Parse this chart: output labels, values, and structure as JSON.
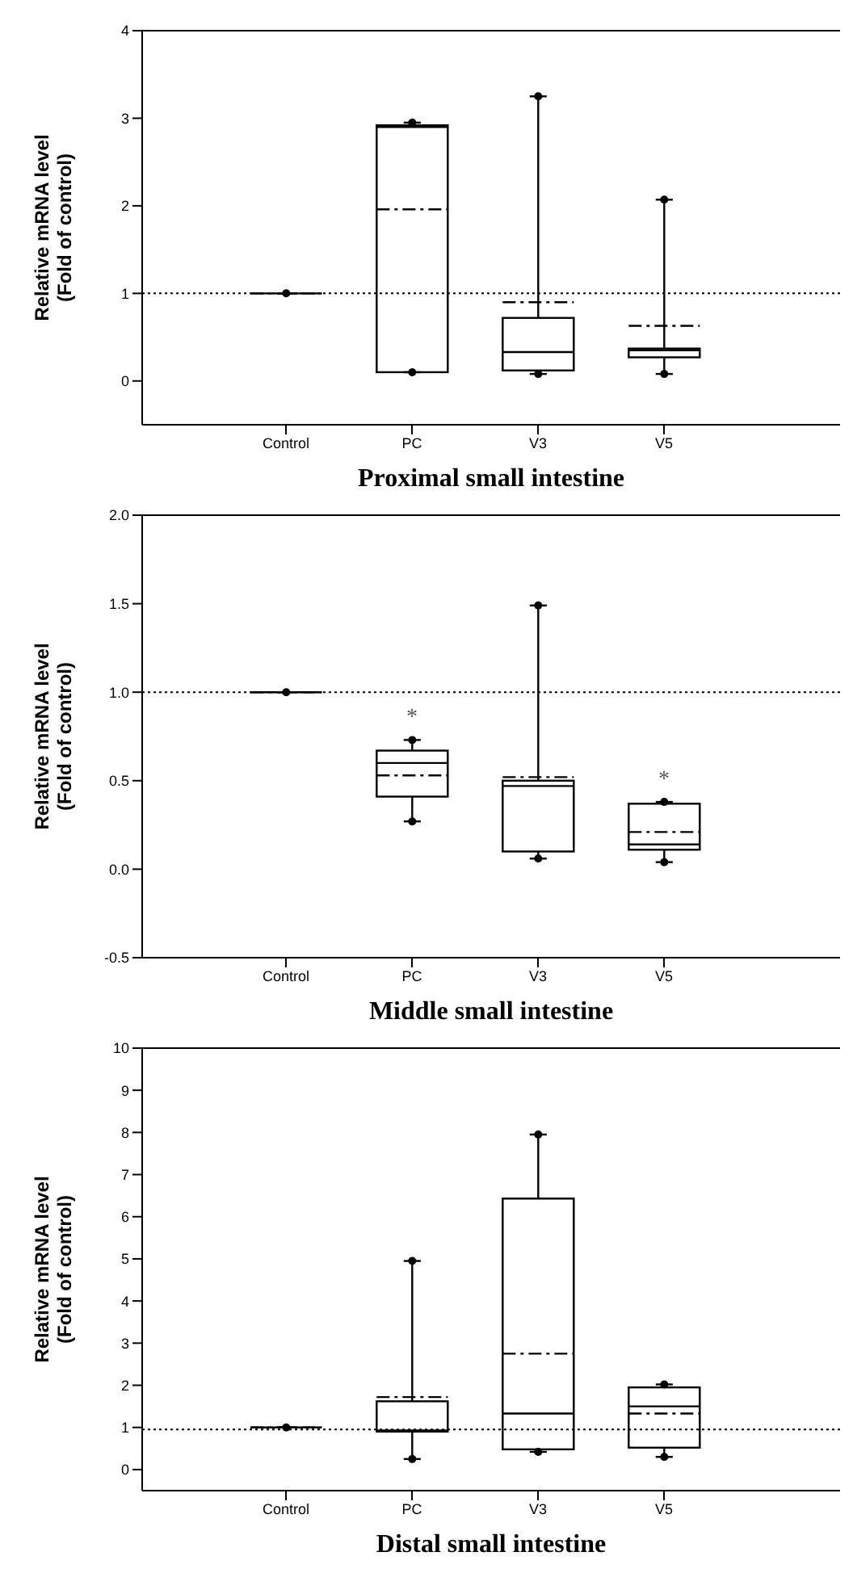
{
  "chart_data": [
    {
      "type": "box",
      "xlabel": "Proximal small intestine",
      "ylabel": "Relative mRNA level\n(Fold of control)",
      "categories": [
        "Control",
        "PC",
        "V3",
        "V5"
      ],
      "color": "#000000",
      "boxes": [
        {
          "low": 1,
          "q1": 1,
          "median": 1,
          "q3": 1,
          "high": 1,
          "mean": 1
        },
        {
          "low": 0.1,
          "q1": 0.1,
          "median": 2.9,
          "q3": 2.92,
          "high": 2.95,
          "mean": 1.96,
          "outliers": [
            0.1,
            2.95
          ]
        },
        {
          "low": 0.08,
          "q1": 0.12,
          "median": 0.33,
          "q3": 0.72,
          "high": 3.25,
          "mean": 0.9,
          "outliers": [
            0.08,
            3.25
          ]
        },
        {
          "low": 0.08,
          "q1": 0.27,
          "median": 0.35,
          "q3": 0.37,
          "high": 2.07,
          "mean": 0.63,
          "outliers": [
            0.08,
            2.07
          ]
        }
      ],
      "ylim": [
        -0.5,
        4
      ],
      "yticks": [
        0,
        1,
        2,
        3,
        4
      ],
      "ref_lines": [
        {
          "axis": "y",
          "value": 1,
          "line_style": "dotted"
        }
      ]
    },
    {
      "type": "box",
      "xlabel": "Middle small intestine",
      "ylabel": "Relative mRNA level\n(Fold of control)",
      "categories": [
        "Control",
        "PC",
        "V3",
        "V5"
      ],
      "color": "#000000",
      "boxes": [
        {
          "low": 1,
          "q1": 1,
          "median": 1,
          "q3": 1,
          "high": 1,
          "mean": 1
        },
        {
          "low": 0.27,
          "q1": 0.41,
          "median": 0.6,
          "q3": 0.67,
          "high": 0.73,
          "mean": 0.53,
          "outliers": [
            0.27,
            0.73
          ]
        },
        {
          "low": 0.06,
          "q1": 0.1,
          "median": 0.47,
          "q3": 0.5,
          "high": 1.49,
          "mean": 0.52,
          "outliers": [
            0.06,
            1.49
          ]
        },
        {
          "low": 0.04,
          "q1": 0.11,
          "median": 0.14,
          "q3": 0.37,
          "high": 0.38,
          "mean": 0.21,
          "outliers": [
            0.04,
            0.38
          ]
        }
      ],
      "ylim": [
        -0.5,
        2
      ],
      "yticks": [
        {
          "value": -0.5,
          "label": "-0.5"
        },
        {
          "value": 0,
          "label": "0.0"
        },
        {
          "value": 0.5,
          "label": "0.5"
        },
        {
          "value": 1,
          "label": "1.0"
        },
        {
          "value": 1.5,
          "label": "1.5"
        },
        {
          "value": 2,
          "label": "2.0"
        }
      ],
      "ref_lines": [
        {
          "axis": "y",
          "value": 1,
          "line_style": "dotted"
        }
      ],
      "annotations": [
        {
          "text": "*",
          "x": "PC",
          "y": 0.73
        },
        {
          "text": "*",
          "x": "V5",
          "y": 0.38
        }
      ]
    },
    {
      "type": "box",
      "xlabel": "Distal small intestine",
      "ylabel": "Relative mRNA level\n(Fold of control)",
      "categories": [
        "Control",
        "PC",
        "V3",
        "V5"
      ],
      "color": "#000000",
      "boxes": [
        {
          "low": 1,
          "q1": 1,
          "median": 1,
          "q3": 1,
          "high": 1,
          "mean": 1
        },
        {
          "low": 0.25,
          "q1": 0.9,
          "median": 0.93,
          "q3": 1.62,
          "high": 4.95,
          "mean": 1.72,
          "outliers": [
            0.25,
            4.95
          ]
        },
        {
          "low": 0.42,
          "q1": 0.48,
          "median": 1.33,
          "q3": 6.43,
          "high": 7.95,
          "mean": 2.75,
          "outliers": [
            0.42,
            7.95
          ]
        },
        {
          "low": 0.3,
          "q1": 0.52,
          "median": 1.5,
          "q3": 1.95,
          "high": 2.02,
          "mean": 1.33,
          "outliers": [
            0.3,
            2.02
          ]
        }
      ],
      "ylim": [
        -0.5,
        10
      ],
      "yticks": [
        0,
        1,
        2,
        3,
        4,
        5,
        6,
        7,
        8,
        9,
        10
      ],
      "ref_lines": [
        {
          "axis": "y",
          "value": 0.95,
          "line_style": "dotted"
        }
      ]
    }
  ]
}
